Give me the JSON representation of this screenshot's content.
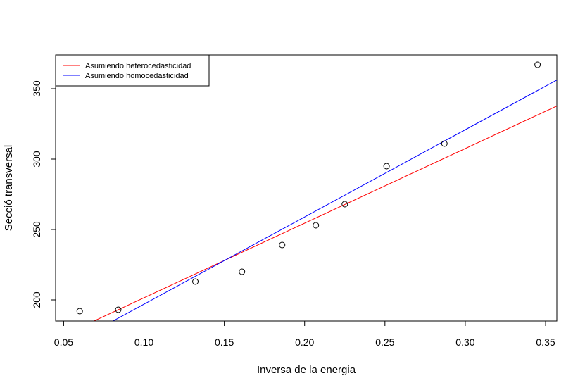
{
  "chart_data": {
    "type": "scatter",
    "title": "",
    "xlabel": "Inversa de la energia",
    "ylabel": "Secció transversal",
    "xlim": [
      0.045,
      0.357
    ],
    "ylim": [
      185,
      374
    ],
    "x_ticks": [
      0.05,
      0.1,
      0.15,
      0.2,
      0.25,
      0.3,
      0.35
    ],
    "x_tick_labels": [
      "0.05",
      "0.10",
      "0.15",
      "0.20",
      "0.25",
      "0.30",
      "0.35"
    ],
    "y_ticks": [
      200,
      250,
      300,
      350
    ],
    "y_tick_labels": [
      "200",
      "250",
      "300",
      "350"
    ],
    "grid": false,
    "legend_position": "top-left",
    "points": {
      "x": [
        0.06,
        0.084,
        0.132,
        0.161,
        0.186,
        0.207,
        0.225,
        0.251,
        0.287,
        0.345
      ],
      "y": [
        192,
        193,
        213,
        220,
        239,
        253,
        268,
        295,
        311,
        367
      ]
    },
    "series": [
      {
        "name": "Asumiendo heterocedasticidad",
        "color": "#ff0000",
        "intercept": 148.5,
        "slope": 530.0
      },
      {
        "name": "Asumiendo homocedasticidad",
        "color": "#0000ff",
        "intercept": 135.0,
        "slope": 619.5
      }
    ]
  }
}
